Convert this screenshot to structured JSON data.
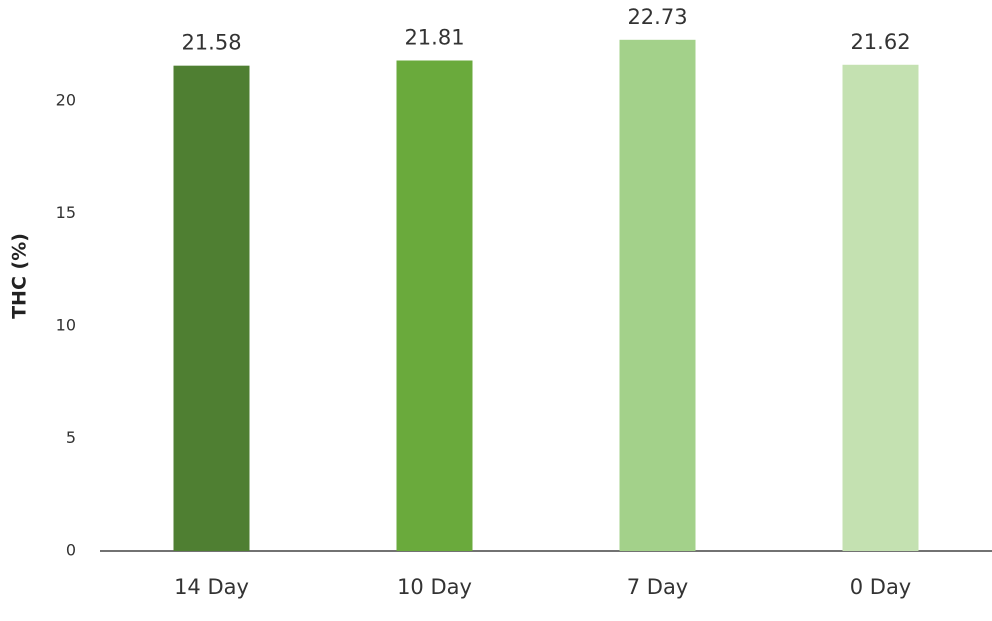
{
  "chart_data": {
    "type": "bar",
    "y_label": "THC (%)",
    "categories": [
      "14 Day",
      "10 Day",
      "7 Day",
      "0 Day"
    ],
    "values": [
      21.58,
      21.81,
      22.73,
      21.62
    ],
    "colors": [
      "#4f7f32",
      "#6aaa3c",
      "#a3d18a",
      "#c4e1b1"
    ],
    "ylim": [
      0,
      24.5
    ],
    "yticks": [
      0,
      5,
      10,
      15,
      20
    ],
    "grid": false
  }
}
